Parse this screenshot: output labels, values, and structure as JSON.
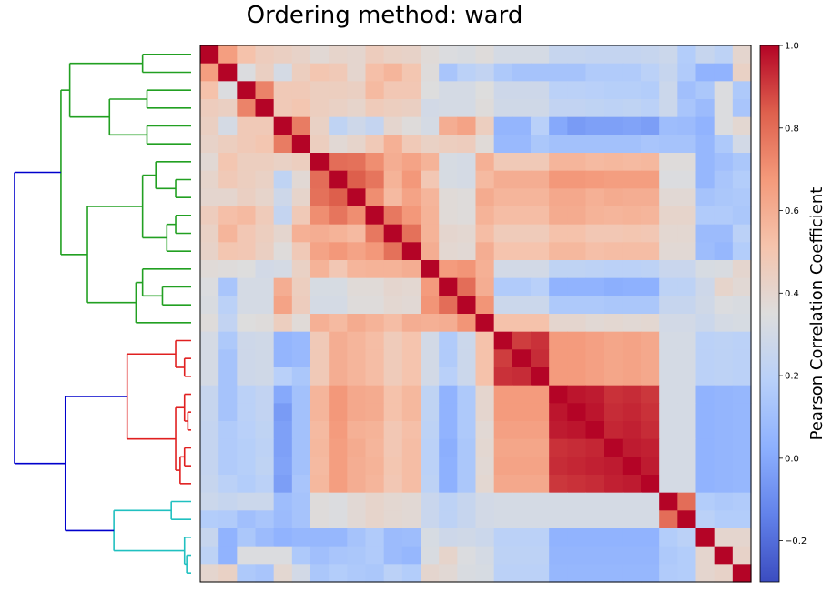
{
  "title": "Ordering method: ward",
  "chart_data": {
    "type": "heatmap",
    "title": "Ordering method: ward",
    "colorbar": {
      "label": "Pearson Correlation Coefficient",
      "vmin": -0.3,
      "vmax": 1.0,
      "ticks": [
        -0.2,
        0.0,
        0.2,
        0.4,
        0.6,
        0.8,
        1.0
      ],
      "tick_labels": [
        "−0.2",
        "0.0",
        "0.2",
        "0.4",
        "0.6",
        "0.8",
        "1.0"
      ],
      "colormap": "coolwarm"
    },
    "n": 30,
    "matrix": [
      [
        1.0,
        0.66,
        0.52,
        0.46,
        0.44,
        0.42,
        0.38,
        0.41,
        0.4,
        0.46,
        0.43,
        0.42,
        0.37,
        0.34,
        0.33,
        0.36,
        0.31,
        0.31,
        0.31,
        0.25,
        0.25,
        0.24,
        0.24,
        0.24,
        0.25,
        0.27,
        0.17,
        0.25,
        0.21,
        0.4
      ],
      [
        0.66,
        1.0,
        0.34,
        0.44,
        0.31,
        0.45,
        0.5,
        0.48,
        0.4,
        0.53,
        0.57,
        0.5,
        0.36,
        0.13,
        0.2,
        0.23,
        0.15,
        0.12,
        0.12,
        0.12,
        0.12,
        0.16,
        0.16,
        0.16,
        0.2,
        0.25,
        0.16,
        0.04,
        0.04,
        0.43
      ],
      [
        0.52,
        0.34,
        1.0,
        0.74,
        0.48,
        0.48,
        0.45,
        0.45,
        0.44,
        0.55,
        0.49,
        0.49,
        0.35,
        0.31,
        0.31,
        0.35,
        0.28,
        0.28,
        0.28,
        0.2,
        0.2,
        0.19,
        0.18,
        0.18,
        0.17,
        0.27,
        0.1,
        0.14,
        0.34,
        0.15
      ],
      [
        0.46,
        0.44,
        0.74,
        1.0,
        0.48,
        0.5,
        0.45,
        0.43,
        0.41,
        0.47,
        0.45,
        0.44,
        0.3,
        0.31,
        0.31,
        0.36,
        0.29,
        0.29,
        0.29,
        0.23,
        0.23,
        0.22,
        0.21,
        0.22,
        0.2,
        0.27,
        0.13,
        0.08,
        0.34,
        0.13
      ],
      [
        0.44,
        0.31,
        0.48,
        0.48,
        1.0,
        0.76,
        0.43,
        0.22,
        0.28,
        0.24,
        0.4,
        0.36,
        0.31,
        0.6,
        0.64,
        0.45,
        0.05,
        0.05,
        0.19,
        0.0,
        -0.05,
        -0.03,
        -0.03,
        -0.02,
        -0.04,
        0.09,
        0.08,
        0.04,
        0.34,
        0.39
      ],
      [
        0.42,
        0.45,
        0.48,
        0.5,
        0.76,
        1.0,
        0.45,
        0.38,
        0.41,
        0.48,
        0.59,
        0.48,
        0.43,
        0.45,
        0.46,
        0.37,
        0.07,
        0.07,
        0.14,
        0.11,
        0.11,
        0.11,
        0.11,
        0.11,
        0.13,
        0.12,
        0.12,
        0.06,
        0.15,
        0.3
      ],
      [
        0.38,
        0.5,
        0.45,
        0.45,
        0.43,
        0.45,
        1.0,
        0.8,
        0.79,
        0.71,
        0.6,
        0.64,
        0.58,
        0.32,
        0.31,
        0.59,
        0.48,
        0.48,
        0.48,
        0.57,
        0.57,
        0.55,
        0.56,
        0.55,
        0.56,
        0.36,
        0.36,
        0.06,
        0.1,
        0.14
      ],
      [
        0.41,
        0.48,
        0.45,
        0.43,
        0.22,
        0.38,
        0.8,
        1.0,
        0.84,
        0.78,
        0.58,
        0.68,
        0.49,
        0.32,
        0.31,
        0.55,
        0.6,
        0.6,
        0.6,
        0.68,
        0.68,
        0.67,
        0.66,
        0.66,
        0.66,
        0.34,
        0.34,
        0.06,
        0.13,
        0.17
      ],
      [
        0.4,
        0.4,
        0.44,
        0.41,
        0.28,
        0.41,
        0.79,
        0.84,
        1.0,
        0.71,
        0.55,
        0.64,
        0.57,
        0.37,
        0.36,
        0.61,
        0.57,
        0.57,
        0.57,
        0.62,
        0.62,
        0.59,
        0.61,
        0.6,
        0.6,
        0.38,
        0.38,
        0.12,
        0.14,
        0.15
      ],
      [
        0.46,
        0.53,
        0.55,
        0.47,
        0.24,
        0.48,
        0.71,
        0.78,
        0.71,
        1.0,
        0.77,
        0.68,
        0.58,
        0.37,
        0.36,
        0.58,
        0.54,
        0.54,
        0.54,
        0.61,
        0.61,
        0.58,
        0.57,
        0.58,
        0.57,
        0.41,
        0.41,
        0.16,
        0.16,
        0.14
      ],
      [
        0.43,
        0.57,
        0.49,
        0.45,
        0.4,
        0.59,
        0.6,
        0.58,
        0.55,
        0.77,
        1.0,
        0.79,
        0.58,
        0.4,
        0.39,
        0.54,
        0.47,
        0.47,
        0.47,
        0.52,
        0.52,
        0.49,
        0.49,
        0.5,
        0.49,
        0.39,
        0.39,
        0.08,
        0.08,
        0.2
      ],
      [
        0.42,
        0.5,
        0.49,
        0.44,
        0.36,
        0.48,
        0.64,
        0.68,
        0.64,
        0.68,
        0.79,
        1.0,
        0.6,
        0.39,
        0.38,
        0.6,
        0.51,
        0.51,
        0.51,
        0.56,
        0.56,
        0.53,
        0.54,
        0.54,
        0.54,
        0.38,
        0.38,
        0.09,
        0.06,
        0.17
      ],
      [
        0.37,
        0.36,
        0.35,
        0.3,
        0.31,
        0.43,
        0.58,
        0.49,
        0.57,
        0.58,
        0.58,
        0.6,
        1.0,
        0.67,
        0.69,
        0.59,
        0.3,
        0.3,
        0.3,
        0.22,
        0.22,
        0.21,
        0.2,
        0.2,
        0.21,
        0.26,
        0.26,
        0.32,
        0.33,
        0.4
      ],
      [
        0.34,
        0.13,
        0.31,
        0.31,
        0.6,
        0.45,
        0.32,
        0.32,
        0.37,
        0.37,
        0.4,
        0.39,
        0.67,
        1.0,
        0.8,
        0.6,
        0.16,
        0.16,
        0.19,
        0.04,
        0.04,
        0.04,
        0.02,
        0.03,
        0.03,
        0.21,
        0.21,
        0.28,
        0.41,
        0.38
      ],
      [
        0.33,
        0.2,
        0.31,
        0.31,
        0.64,
        0.46,
        0.31,
        0.31,
        0.36,
        0.36,
        0.39,
        0.38,
        0.69,
        0.8,
        1.0,
        0.69,
        0.27,
        0.27,
        0.27,
        0.15,
        0.15,
        0.15,
        0.14,
        0.14,
        0.14,
        0.25,
        0.25,
        0.29,
        0.34,
        0.33
      ],
      [
        0.36,
        0.23,
        0.35,
        0.36,
        0.45,
        0.37,
        0.59,
        0.55,
        0.61,
        0.58,
        0.54,
        0.6,
        0.59,
        0.6,
        0.69,
        1.0,
        0.52,
        0.52,
        0.52,
        0.4,
        0.4,
        0.38,
        0.39,
        0.38,
        0.39,
        0.3,
        0.3,
        0.27,
        0.31,
        0.32
      ],
      [
        0.31,
        0.15,
        0.28,
        0.29,
        0.05,
        0.07,
        0.48,
        0.6,
        0.57,
        0.54,
        0.47,
        0.51,
        0.3,
        0.16,
        0.27,
        0.52,
        1.0,
        0.9,
        0.92,
        0.67,
        0.67,
        0.65,
        0.63,
        0.64,
        0.62,
        0.31,
        0.31,
        0.2,
        0.21,
        0.2
      ],
      [
        0.31,
        0.12,
        0.28,
        0.29,
        0.05,
        0.07,
        0.48,
        0.6,
        0.57,
        0.54,
        0.47,
        0.51,
        0.3,
        0.16,
        0.27,
        0.52,
        0.9,
        1.0,
        0.93,
        0.67,
        0.67,
        0.65,
        0.63,
        0.64,
        0.62,
        0.31,
        0.31,
        0.2,
        0.21,
        0.2
      ],
      [
        0.31,
        0.12,
        0.28,
        0.29,
        0.19,
        0.14,
        0.48,
        0.6,
        0.57,
        0.54,
        0.47,
        0.51,
        0.3,
        0.19,
        0.27,
        0.52,
        0.92,
        0.93,
        1.0,
        0.67,
        0.67,
        0.65,
        0.63,
        0.64,
        0.62,
        0.31,
        0.31,
        0.2,
        0.21,
        0.2
      ],
      [
        0.25,
        0.12,
        0.2,
        0.23,
        0.0,
        0.11,
        0.57,
        0.68,
        0.62,
        0.61,
        0.52,
        0.56,
        0.22,
        0.04,
        0.15,
        0.4,
        0.67,
        0.67,
        0.67,
        1.0,
        0.97,
        0.96,
        0.92,
        0.93,
        0.91,
        0.31,
        0.31,
        0.04,
        0.05,
        0.06
      ],
      [
        0.25,
        0.12,
        0.2,
        0.23,
        -0.05,
        0.11,
        0.57,
        0.68,
        0.62,
        0.61,
        0.52,
        0.56,
        0.22,
        0.04,
        0.15,
        0.4,
        0.67,
        0.67,
        0.67,
        0.97,
        1.0,
        0.97,
        0.93,
        0.94,
        0.92,
        0.31,
        0.31,
        0.04,
        0.05,
        0.06
      ],
      [
        0.24,
        0.16,
        0.19,
        0.22,
        -0.03,
        0.11,
        0.55,
        0.67,
        0.59,
        0.58,
        0.49,
        0.53,
        0.21,
        0.04,
        0.15,
        0.38,
        0.65,
        0.65,
        0.65,
        0.96,
        0.97,
        1.0,
        0.94,
        0.95,
        0.93,
        0.31,
        0.31,
        0.04,
        0.05,
        0.06
      ],
      [
        0.24,
        0.16,
        0.18,
        0.21,
        -0.03,
        0.11,
        0.56,
        0.66,
        0.61,
        0.57,
        0.49,
        0.54,
        0.2,
        0.02,
        0.14,
        0.39,
        0.63,
        0.63,
        0.63,
        0.92,
        0.93,
        0.94,
        1.0,
        0.96,
        0.95,
        0.31,
        0.31,
        0.04,
        0.05,
        0.06
      ],
      [
        0.24,
        0.16,
        0.18,
        0.22,
        -0.02,
        0.11,
        0.55,
        0.66,
        0.6,
        0.58,
        0.5,
        0.54,
        0.2,
        0.03,
        0.14,
        0.38,
        0.64,
        0.64,
        0.64,
        0.93,
        0.94,
        0.95,
        0.96,
        1.0,
        0.96,
        0.31,
        0.31,
        0.04,
        0.05,
        0.06
      ],
      [
        0.25,
        0.2,
        0.17,
        0.2,
        -0.04,
        0.13,
        0.56,
        0.66,
        0.6,
        0.57,
        0.49,
        0.54,
        0.21,
        0.03,
        0.14,
        0.39,
        0.62,
        0.62,
        0.62,
        0.91,
        0.92,
        0.93,
        0.95,
        0.96,
        1.0,
        0.31,
        0.31,
        0.04,
        0.05,
        0.06
      ],
      [
        0.27,
        0.25,
        0.27,
        0.27,
        0.09,
        0.12,
        0.36,
        0.34,
        0.38,
        0.41,
        0.39,
        0.38,
        0.26,
        0.21,
        0.25,
        0.3,
        0.31,
        0.31,
        0.31,
        0.31,
        0.31,
        0.31,
        0.31,
        0.31,
        0.31,
        1.0,
        0.8,
        0.17,
        0.15,
        0.16
      ],
      [
        0.17,
        0.16,
        0.1,
        0.13,
        0.08,
        0.12,
        0.36,
        0.34,
        0.38,
        0.41,
        0.39,
        0.38,
        0.26,
        0.21,
        0.25,
        0.3,
        0.31,
        0.31,
        0.31,
        0.31,
        0.31,
        0.31,
        0.31,
        0.31,
        0.31,
        0.8,
        1.0,
        0.2,
        0.17,
        0.17
      ],
      [
        0.25,
        0.04,
        0.14,
        0.08,
        0.04,
        0.06,
        0.06,
        0.06,
        0.12,
        0.16,
        0.08,
        0.09,
        0.32,
        0.28,
        0.29,
        0.27,
        0.2,
        0.2,
        0.2,
        0.04,
        0.04,
        0.04,
        0.04,
        0.04,
        0.04,
        0.17,
        0.2,
        1.0,
        0.4,
        0.4
      ],
      [
        0.21,
        0.04,
        0.34,
        0.34,
        0.34,
        0.15,
        0.1,
        0.13,
        0.14,
        0.16,
        0.08,
        0.06,
        0.33,
        0.41,
        0.34,
        0.31,
        0.21,
        0.21,
        0.21,
        0.05,
        0.05,
        0.05,
        0.05,
        0.05,
        0.05,
        0.15,
        0.17,
        0.4,
        1.0,
        0.42
      ],
      [
        0.4,
        0.43,
        0.15,
        0.13,
        0.39,
        0.3,
        0.14,
        0.17,
        0.15,
        0.14,
        0.2,
        0.17,
        0.4,
        0.38,
        0.33,
        0.32,
        0.2,
        0.2,
        0.2,
        0.06,
        0.06,
        0.06,
        0.06,
        0.06,
        0.06,
        0.16,
        0.17,
        0.4,
        0.42,
        1.0
      ]
    ],
    "dendrogram": {
      "method": "ward",
      "colors": {
        "root": "#0000cc",
        "green": "#22a022",
        "red": "#e02020",
        "cyan": "#20c0c0"
      },
      "leaf_order": [
        0,
        1,
        2,
        3,
        4,
        5,
        6,
        7,
        8,
        9,
        10,
        11,
        12,
        13,
        14,
        15,
        16,
        17,
        18,
        19,
        20,
        21,
        22,
        23,
        24,
        25,
        26,
        27,
        28,
        29
      ],
      "merges": [
        {
          "a": "L0",
          "b": "L1",
          "height": 2.2,
          "color": "green"
        },
        {
          "a": "L2",
          "b": "L3",
          "height": 2.0,
          "color": "green"
        },
        {
          "a": "L4",
          "b": "L5",
          "height": 2.0,
          "color": "green"
        },
        {
          "a": "N1",
          "b": "N2",
          "height": 3.7,
          "color": "green"
        },
        {
          "a": "N0",
          "b": "N3",
          "height": 5.5,
          "color": "green"
        },
        {
          "a": "L7",
          "b": "L8",
          "height": 0.7,
          "color": "green"
        },
        {
          "a": "L6",
          "b": "N5",
          "height": 1.6,
          "color": "green"
        },
        {
          "a": "L9",
          "b": "L10",
          "height": 0.7,
          "color": "green"
        },
        {
          "a": "N7",
          "b": "L11",
          "height": 1.1,
          "color": "green"
        },
        {
          "a": "N6",
          "b": "N8",
          "height": 2.2,
          "color": "green"
        },
        {
          "a": "L13",
          "b": "L14",
          "height": 1.3,
          "color": "green"
        },
        {
          "a": "L12",
          "b": "N10",
          "height": 2.2,
          "color": "green"
        },
        {
          "a": "N11",
          "b": "L15",
          "height": 2.5,
          "color": "green"
        },
        {
          "a": "N9",
          "b": "N12",
          "height": 4.7,
          "color": "green"
        },
        {
          "a": "N4",
          "b": "N13",
          "height": 5.9,
          "color": "green"
        },
        {
          "a": "L17",
          "b": "L18",
          "height": 0.3,
          "color": "red"
        },
        {
          "a": "L16",
          "b": "N15",
          "height": 0.7,
          "color": "red"
        },
        {
          "a": "L20",
          "b": "L21",
          "height": 0.15,
          "color": "red"
        },
        {
          "a": "L19",
          "b": "N17",
          "height": 0.3,
          "color": "red"
        },
        {
          "a": "L22",
          "b": "L23",
          "height": 0.3,
          "color": "red"
        },
        {
          "a": "N19",
          "b": "L24",
          "height": 0.5,
          "color": "red"
        },
        {
          "a": "N18",
          "b": "N20",
          "height": 0.7,
          "color": "red"
        },
        {
          "a": "N16",
          "b": "N21",
          "height": 2.9,
          "color": "red"
        },
        {
          "a": "L25",
          "b": "L26",
          "height": 0.9,
          "color": "cyan"
        },
        {
          "a": "L28",
          "b": "L29",
          "height": 0.2,
          "color": "cyan"
        },
        {
          "a": "L27",
          "b": "N24",
          "height": 0.3,
          "color": "cyan"
        },
        {
          "a": "N23",
          "b": "N25",
          "height": 3.5,
          "color": "cyan"
        },
        {
          "a": "N22",
          "b": "N26",
          "height": 5.7,
          "color": "root"
        },
        {
          "a": "N14",
          "b": "N27",
          "height": 8.0,
          "color": "root"
        }
      ]
    }
  }
}
